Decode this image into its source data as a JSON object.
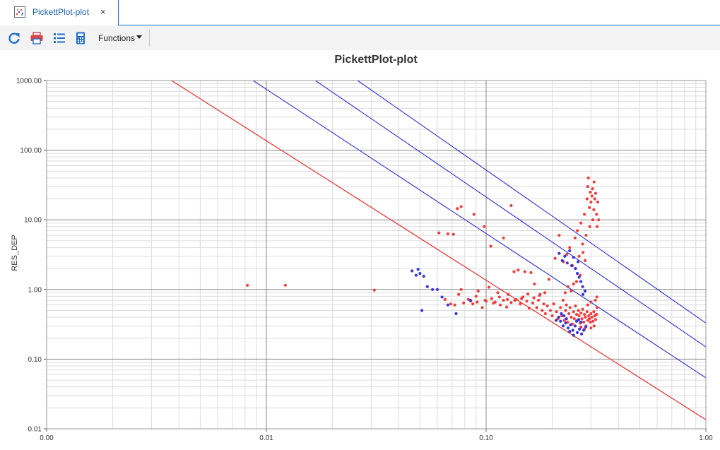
{
  "tab": {
    "title": "PickettPlot-plot",
    "close_glyph": "×",
    "icon": "scatter-plot-icon"
  },
  "toolbar": {
    "buttons": [
      {
        "name": "refresh-button",
        "icon": "refresh-icon"
      },
      {
        "name": "print-button",
        "icon": "printer-icon"
      },
      {
        "name": "list-button",
        "icon": "list-icon"
      },
      {
        "name": "calculator-button",
        "icon": "calculator-icon"
      }
    ],
    "functions_label": "Functions"
  },
  "colors": {
    "accent": "#0078d7",
    "red_series": "#f23c3c",
    "blue_series": "#3535dc",
    "red_line": "#ee2020",
    "blue_line": "#2a2ad8"
  },
  "chart_data": {
    "type": "scatter",
    "title": "PickettPlot-plot",
    "xlabel": "",
    "ylabel": "RES_DEP",
    "x_scale": "log",
    "y_scale": "log",
    "xlim": [
      0.001,
      1.0
    ],
    "ylim": [
      0.01,
      1000.0
    ],
    "x_ticks": [
      {
        "value": 0.001,
        "label": "0.00"
      },
      {
        "value": 0.01,
        "label": "0.01"
      },
      {
        "value": 0.1,
        "label": "0.10"
      },
      {
        "value": 1.0,
        "label": "1.00"
      }
    ],
    "y_ticks": [
      {
        "value": 0.01,
        "label": "0.01"
      },
      {
        "value": 0.1,
        "label": "0.10"
      },
      {
        "value": 1,
        "label": "1.00"
      },
      {
        "value": 10,
        "label": "10.00"
      },
      {
        "value": 100,
        "label": "100.00"
      },
      {
        "value": 1000,
        "label": "1000.00"
      }
    ],
    "grid": true,
    "lines": [
      {
        "color": "red",
        "points": [
          [
            0.0037,
            1000
          ],
          [
            1.0,
            0.0135
          ]
        ]
      },
      {
        "color": "blue",
        "points": [
          [
            0.0087,
            1000
          ],
          [
            1.0,
            0.054
          ]
        ]
      },
      {
        "color": "blue",
        "points": [
          [
            0.0167,
            1000
          ],
          [
            1.0,
            0.15
          ]
        ]
      },
      {
        "color": "blue",
        "points": [
          [
            0.026,
            1000
          ],
          [
            1.0,
            0.33
          ]
        ]
      }
    ],
    "series": [
      {
        "color": "red",
        "points": [
          [
            0.0082,
            1.15
          ],
          [
            0.0122,
            1.15
          ],
          [
            0.031,
            0.98
          ],
          [
            0.061,
            6.5
          ],
          [
            0.067,
            6.3
          ],
          [
            0.071,
            6.2
          ],
          [
            0.074,
            14.5
          ],
          [
            0.077,
            15.5
          ],
          [
            0.088,
            12.0
          ],
          [
            0.098,
            8.0
          ],
          [
            0.105,
            4.2
          ],
          [
            0.12,
            5.5
          ],
          [
            0.13,
            16.0
          ],
          [
            0.065,
            0.72
          ],
          [
            0.069,
            0.62
          ],
          [
            0.075,
            0.85
          ],
          [
            0.077,
            1.0
          ],
          [
            0.083,
            0.72
          ],
          [
            0.087,
            0.62
          ],
          [
            0.09,
            0.8
          ],
          [
            0.092,
            0.95
          ],
          [
            0.096,
            0.55
          ],
          [
            0.1,
            0.68
          ],
          [
            0.103,
            1.08
          ],
          [
            0.106,
            0.74
          ],
          [
            0.11,
            0.66
          ],
          [
            0.113,
            0.9
          ],
          [
            0.116,
            0.6
          ],
          [
            0.12,
            0.7
          ],
          [
            0.124,
            0.56
          ],
          [
            0.126,
            0.85
          ],
          [
            0.13,
            0.65
          ],
          [
            0.134,
            1.8
          ],
          [
            0.137,
            0.72
          ],
          [
            0.14,
            1.9
          ],
          [
            0.143,
            0.62
          ],
          [
            0.147,
            0.78
          ],
          [
            0.15,
            1.8
          ],
          [
            0.153,
            0.68
          ],
          [
            0.157,
            0.54
          ],
          [
            0.16,
            1.75
          ],
          [
            0.163,
            0.64
          ],
          [
            0.166,
            1.2
          ],
          [
            0.17,
            0.55
          ],
          [
            0.173,
            0.7
          ],
          [
            0.176,
            0.85
          ],
          [
            0.18,
            0.5
          ],
          [
            0.183,
            0.62
          ],
          [
            0.186,
            0.45
          ],
          [
            0.19,
            0.58
          ],
          [
            0.193,
            1.4
          ],
          [
            0.196,
            0.5
          ],
          [
            0.2,
            0.42
          ],
          [
            0.203,
            0.62
          ],
          [
            0.206,
            2.8
          ],
          [
            0.209,
            0.48
          ],
          [
            0.212,
            0.38
          ],
          [
            0.215,
            6.0
          ],
          [
            0.218,
            0.55
          ],
          [
            0.221,
            0.42
          ],
          [
            0.224,
            0.7
          ],
          [
            0.227,
            0.36
          ],
          [
            0.23,
            0.5
          ],
          [
            0.232,
            0.6
          ],
          [
            0.235,
            0.34
          ],
          [
            0.238,
            0.45
          ],
          [
            0.241,
            0.55
          ],
          [
            0.244,
            0.4
          ],
          [
            0.247,
            0.32
          ],
          [
            0.25,
            0.48
          ],
          [
            0.252,
            0.38
          ],
          [
            0.255,
            0.58
          ],
          [
            0.258,
            0.44
          ],
          [
            0.26,
            0.36
          ],
          [
            0.263,
            0.5
          ],
          [
            0.265,
            0.42
          ],
          [
            0.268,
            0.33
          ],
          [
            0.27,
            0.46
          ],
          [
            0.273,
            0.38
          ],
          [
            0.275,
            0.52
          ],
          [
            0.278,
            0.34
          ],
          [
            0.28,
            0.44
          ],
          [
            0.283,
            0.4
          ],
          [
            0.285,
            0.3
          ],
          [
            0.288,
            0.48
          ],
          [
            0.29,
            0.36
          ],
          [
            0.293,
            0.42
          ],
          [
            0.295,
            0.38
          ],
          [
            0.298,
            0.34
          ],
          [
            0.3,
            0.45
          ],
          [
            0.303,
            0.4
          ],
          [
            0.306,
            0.35
          ],
          [
            0.309,
            0.48
          ],
          [
            0.312,
            0.42
          ],
          [
            0.315,
            0.37
          ],
          [
            0.318,
            0.44
          ],
          [
            0.32,
            0.55
          ],
          [
            0.225,
            2.5
          ],
          [
            0.233,
            3.2
          ],
          [
            0.24,
            4.0
          ],
          [
            0.247,
            2.2
          ],
          [
            0.254,
            5.5
          ],
          [
            0.26,
            7.0
          ],
          [
            0.265,
            3.0
          ],
          [
            0.27,
            9.0
          ],
          [
            0.275,
            4.5
          ],
          [
            0.28,
            12.0
          ],
          [
            0.285,
            6.0
          ],
          [
            0.288,
            20.0
          ],
          [
            0.29,
            30.0
          ],
          [
            0.292,
            40.0
          ],
          [
            0.295,
            15.0
          ],
          [
            0.298,
            25.0
          ],
          [
            0.3,
            18.0
          ],
          [
            0.303,
            22.0
          ],
          [
            0.306,
            10.0
          ],
          [
            0.309,
            14.0
          ],
          [
            0.312,
            20.0
          ],
          [
            0.315,
            24.0
          ],
          [
            0.318,
            12.0
          ],
          [
            0.32,
            8.0
          ],
          [
            0.322,
            18.0
          ],
          [
            0.325,
            10.0
          ],
          [
            0.31,
            35.0
          ],
          [
            0.305,
            28.0
          ],
          [
            0.296,
            8.0
          ],
          [
            0.282,
            2.6
          ],
          [
            0.276,
            3.4
          ],
          [
            0.268,
            1.6
          ],
          [
            0.258,
            1.3
          ],
          [
            0.25,
            1.2
          ],
          [
            0.244,
            0.95
          ],
          [
            0.236,
            1.1
          ],
          [
            0.229,
            0.9
          ],
          [
            0.319,
            0.78
          ],
          [
            0.314,
            0.7
          ],
          [
            0.3,
            0.66
          ],
          [
            0.29,
            0.6
          ],
          [
            0.31,
            0.3
          ],
          [
            0.3,
            0.28
          ],
          [
            0.28,
            0.27
          ],
          [
            0.27,
            0.29
          ],
          [
            0.185,
            0.9
          ],
          [
            0.175,
            0.82
          ],
          [
            0.165,
            0.76
          ],
          [
            0.155,
            0.86
          ],
          [
            0.145,
            0.74
          ],
          [
            0.135,
            0.7
          ],
          [
            0.125,
            0.72
          ],
          [
            0.115,
            0.78
          ],
          [
            0.108,
            0.64
          ],
          [
            0.099,
            0.7
          ],
          [
            0.091,
            0.66
          ],
          [
            0.085,
            0.68
          ],
          [
            0.079,
            0.64
          ],
          [
            0.072,
            0.6
          ]
        ]
      },
      {
        "color": "blue",
        "points": [
          [
            0.046,
            1.85
          ],
          [
            0.048,
            1.6
          ],
          [
            0.049,
            1.95
          ],
          [
            0.05,
            1.7
          ],
          [
            0.052,
            1.55
          ],
          [
            0.051,
            0.5
          ],
          [
            0.054,
            1.1
          ],
          [
            0.057,
            1.0
          ],
          [
            0.06,
            1.0
          ],
          [
            0.063,
            0.78
          ],
          [
            0.067,
            0.6
          ],
          [
            0.073,
            0.45
          ],
          [
            0.085,
            0.7
          ],
          [
            0.215,
            3.3
          ],
          [
            0.222,
            2.6
          ],
          [
            0.228,
            3.0
          ],
          [
            0.234,
            2.4
          ],
          [
            0.24,
            3.6
          ],
          [
            0.245,
            2.2
          ],
          [
            0.25,
            2.9
          ],
          [
            0.255,
            2.0
          ],
          [
            0.26,
            1.7
          ],
          [
            0.262,
            2.5
          ],
          [
            0.265,
            1.5
          ],
          [
            0.27,
            1.3
          ],
          [
            0.275,
            1.1
          ],
          [
            0.218,
            0.35
          ],
          [
            0.224,
            0.3
          ],
          [
            0.23,
            0.33
          ],
          [
            0.236,
            0.28
          ],
          [
            0.242,
            0.31
          ],
          [
            0.248,
            0.26
          ],
          [
            0.254,
            0.3
          ],
          [
            0.26,
            0.24
          ],
          [
            0.266,
            0.27
          ],
          [
            0.272,
            0.23
          ],
          [
            0.278,
            0.26
          ],
          [
            0.25,
            0.22
          ],
          [
            0.24,
            0.25
          ],
          [
            0.232,
            0.38
          ],
          [
            0.226,
            0.42
          ],
          [
            0.22,
            0.45
          ],
          [
            0.214,
            0.4
          ],
          [
            0.208,
            0.36
          ],
          [
            0.27,
            0.34
          ],
          [
            0.264,
            0.37
          ],
          [
            0.258,
            0.35
          ],
          [
            0.284,
            0.29
          ],
          [
            0.282,
            0.95
          ],
          [
            0.276,
            0.85
          ]
        ]
      }
    ]
  }
}
